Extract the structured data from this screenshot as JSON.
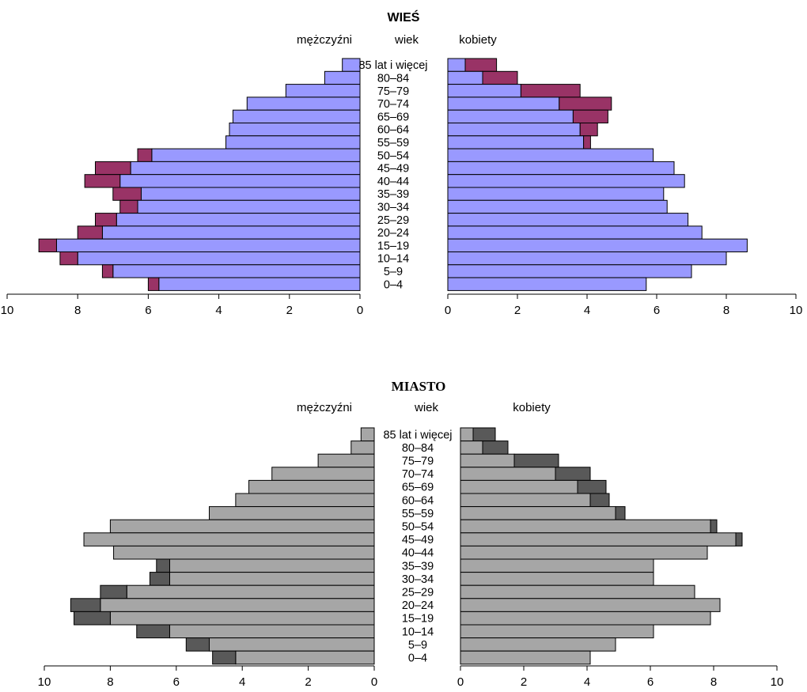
{
  "chart_data": [
    {
      "type": "bar",
      "orientation": "horizontal-pyramid",
      "title": "WIEŚ",
      "left_label": "mężczyźni",
      "center_label": "wiek",
      "right_label": "kobiety",
      "categories": [
        "85 lat i więcej",
        "80–84",
        "75–79",
        "70–74",
        "65–69",
        "60–64",
        "55–59",
        "50–54",
        "45–49",
        "40–44",
        "35–39",
        "30–34",
        "25–29",
        "20–24",
        "15–19",
        "10–14",
        "5–9",
        "0–4"
      ],
      "xlim_left": [
        10,
        0
      ],
      "xlim_right": [
        0,
        10
      ],
      "xticks_left": [
        "10",
        "8",
        "6",
        "4",
        "2",
        "0"
      ],
      "xticks_right": [
        "0",
        "2",
        "4",
        "6",
        "8",
        "10"
      ],
      "colors": {
        "base": "#9999ff",
        "surplus": "#993366"
      },
      "men_base": [
        0.5,
        1.0,
        2.1,
        3.2,
        3.6,
        3.7,
        3.8,
        5.9,
        6.5,
        6.8,
        6.2,
        6.3,
        6.9,
        7.3,
        8.6,
        8.0,
        7.0,
        5.7
      ],
      "men_surplus": [
        0,
        0,
        0,
        0,
        0,
        0,
        0,
        0.4,
        1.0,
        1.0,
        0.8,
        0.5,
        0.6,
        0.7,
        0.5,
        0.5,
        0.3,
        0.3
      ],
      "women_base": [
        0.5,
        1.0,
        2.1,
        3.2,
        3.6,
        3.8,
        3.9,
        5.9,
        6.5,
        6.8,
        6.2,
        6.3,
        6.9,
        7.3,
        8.6,
        8.0,
        7.0,
        5.7
      ],
      "women_surplus": [
        0.9,
        1.0,
        1.7,
        1.5,
        1.0,
        0.5,
        0.2,
        0,
        0,
        0,
        0,
        0,
        0,
        0,
        0,
        0,
        0,
        0
      ]
    },
    {
      "type": "bar",
      "orientation": "horizontal-pyramid",
      "title": "MIASTO",
      "left_label": "mężczyźni",
      "center_label": "wiek",
      "right_label": "kobiety",
      "categories": [
        "85 lat i więcej",
        "80–84",
        "75–79",
        "70–74",
        "65–69",
        "60–64",
        "55–59",
        "50–54",
        "45–49",
        "40–44",
        "35–39",
        "30–34",
        "25–29",
        "20–24",
        "15–19",
        "10–14",
        "5–9",
        "0–4"
      ],
      "xlim_left": [
        10,
        0
      ],
      "xlim_right": [
        0,
        10
      ],
      "xticks_left": [
        "10",
        "8",
        "6",
        "4",
        "2",
        "0"
      ],
      "xticks_right": [
        "0",
        "2",
        "4",
        "6",
        "8",
        "10"
      ],
      "colors": {
        "base": "#a6a6a6",
        "surplus": "#595959"
      },
      "men_base": [
        0.4,
        0.7,
        1.7,
        3.1,
        3.8,
        4.2,
        5.0,
        8.0,
        8.8,
        7.9,
        6.2,
        6.2,
        7.5,
        8.3,
        8.0,
        6.2,
        5.0,
        4.2
      ],
      "men_surplus": [
        0,
        0,
        0,
        0,
        0,
        0,
        0,
        0,
        0,
        0,
        0.4,
        0.6,
        0.8,
        0.9,
        1.1,
        1.0,
        0.7,
        0.7
      ],
      "women_base": [
        0.4,
        0.7,
        1.7,
        3.0,
        3.7,
        4.1,
        4.9,
        7.9,
        8.7,
        7.8,
        6.1,
        6.1,
        7.4,
        8.2,
        7.9,
        6.1,
        4.9,
        4.1
      ],
      "women_surplus": [
        0.7,
        0.8,
        1.4,
        1.1,
        0.9,
        0.6,
        0.3,
        0.2,
        0.2,
        0,
        0,
        0,
        0,
        0,
        0,
        0,
        0,
        0
      ]
    }
  ]
}
